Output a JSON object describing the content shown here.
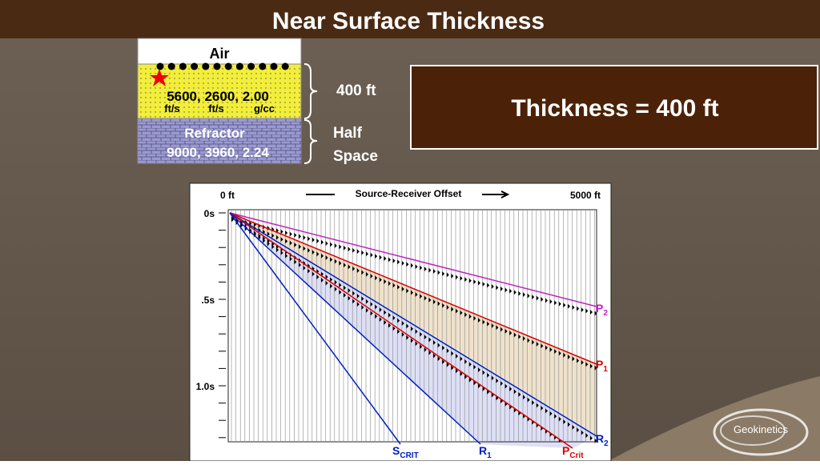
{
  "header": {
    "title": "Near Surface Thickness"
  },
  "model": {
    "top_layer": "Air",
    "layer1": {
      "values": "5600, 2600,  2.00",
      "units": [
        "ft/s",
        "ft/s",
        "g/cc"
      ]
    },
    "layer2": {
      "name": "Refractor",
      "values": "9000, 3960,  2.24"
    },
    "brace_labels": [
      "400 ft",
      "Half Space"
    ]
  },
  "result": {
    "text": "Thickness = 400 ft"
  },
  "seismic": {
    "x_start": "0 ft",
    "x_title": "Source-Receiver Offset",
    "x_end": "5000 ft",
    "y_labels": [
      "0s",
      ".5s",
      "1.0s"
    ],
    "curves": [
      {
        "main": "P",
        "sub": "2"
      },
      {
        "main": "P",
        "sub": "1"
      },
      {
        "main": "R",
        "sub": "2"
      },
      {
        "main": "S",
        "sub": "CRIT"
      },
      {
        "main": "R",
        "sub": "1"
      },
      {
        "main": "P",
        "sub": "Crit"
      }
    ]
  },
  "logo": "Geokinetics"
}
